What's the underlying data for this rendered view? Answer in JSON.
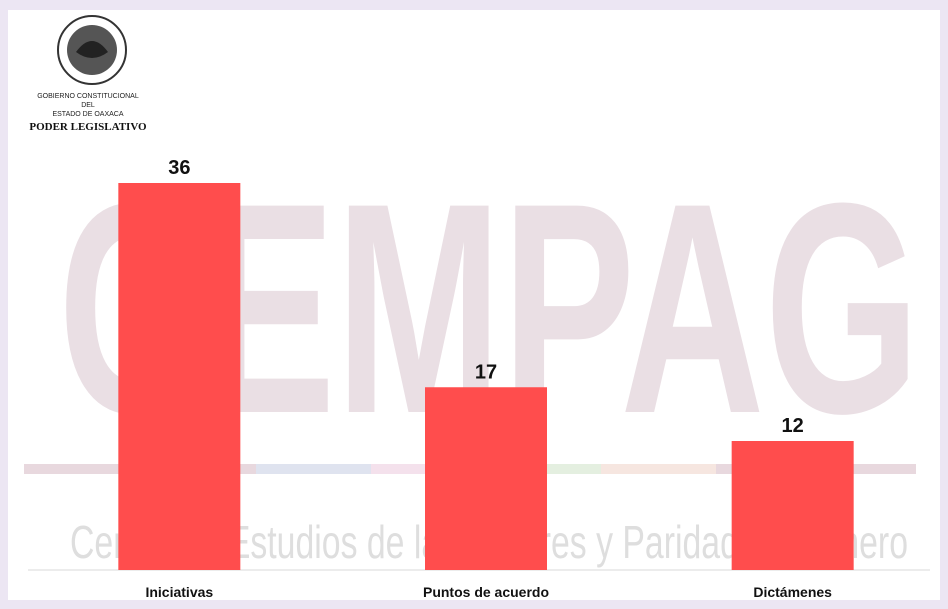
{
  "header": {
    "lines": [
      "GOBIERNO CONSTITUCIONAL",
      "DEL",
      "ESTADO DE OAXACA"
    ],
    "institution": "PODER LEGISLATIVO"
  },
  "watermark": {
    "title": "CEMPAG",
    "subtitle": "Centro de Estudios de las Mujeres y Paridad de Género"
  },
  "chart_data": {
    "type": "bar",
    "categories": [
      "Iniciativas",
      "Puntos de acuerdo",
      "Dictámenes"
    ],
    "values": [
      36,
      17,
      12
    ],
    "color": "#ff4d4d"
  }
}
